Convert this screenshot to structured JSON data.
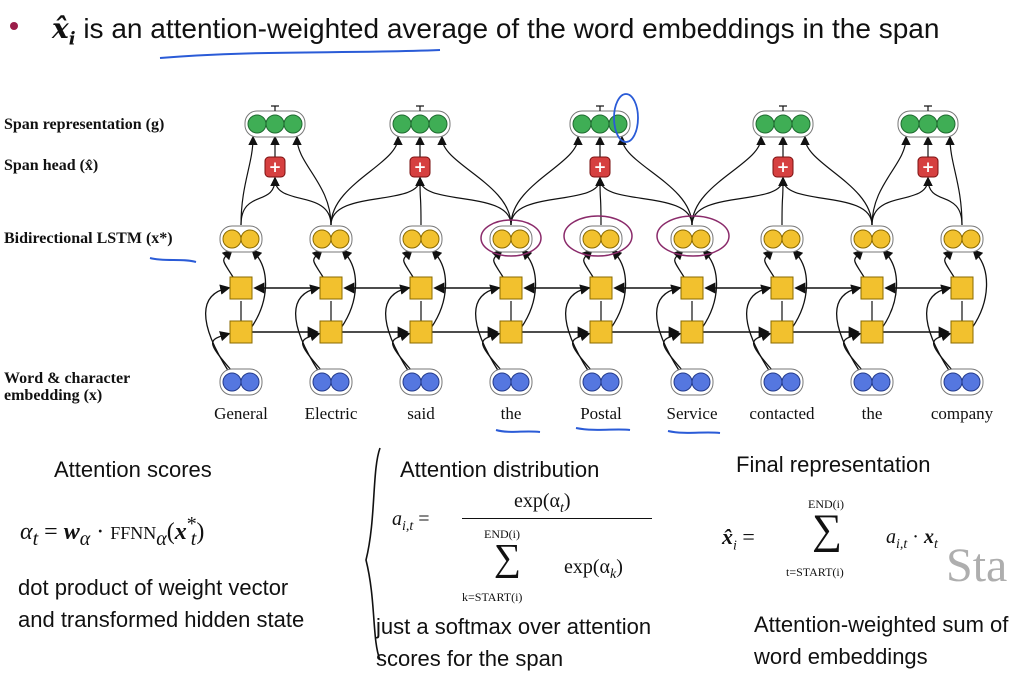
{
  "bullet": {
    "symbol": "x̂",
    "subscript": "i",
    "text": "is an attention-weighted average of the word embeddings in the span"
  },
  "diagram": {
    "labels": {
      "span_representation": "Span representation (g)",
      "span_head": "Span head (x̂)",
      "bilstm": "Bidirectional LSTM (x*)",
      "embedding_line1": "Word & character",
      "embedding_line2": "embedding (x)"
    },
    "plus_symbol": "+",
    "words": [
      "General",
      "Electric",
      "said",
      "the",
      "Postal",
      "Service",
      "contacted",
      "the",
      "company"
    ],
    "colors": {
      "green_node": "#3fae55",
      "yellow_node": "#f2c12e",
      "blue_node": "#5577e0",
      "red_head": "#d64040",
      "lstm_box": "#f2c12e",
      "annotation_ink": "#2a5bd7",
      "annotation_purple": "#8a2a6a"
    }
  },
  "sections": {
    "attention_scores": {
      "title": "Attention scores",
      "formula_lhs": "α",
      "formula_lhs_sub": "t",
      "formula_w": "w",
      "formula_w_sub": "α",
      "formula_ffnn": "FFNN",
      "formula_ffnn_sub": "α",
      "formula_x": "x",
      "formula_x_sub": "t",
      "formula_x_sup": "*",
      "description": "dot product of weight vector and transformed hidden state"
    },
    "attention_distribution": {
      "title": "Attention distribution",
      "lhs": "a",
      "lhs_sub": "i,t",
      "numerator": "exp(α",
      "numerator_sub": "t",
      "sum_top": "END(i)",
      "sum_bottom": "k=START(i)",
      "denominator": "exp(α",
      "denominator_sub": "k",
      "description": "just a softmax over attention scores for the span"
    },
    "final_representation": {
      "title": "Final representation",
      "lhs": "x̂",
      "lhs_sub": "i",
      "sum_top": "END(i)",
      "sum_bottom": "t=START(i)",
      "term": "a",
      "term_sub": "i,t",
      "term2": "x",
      "term2_sub": "t",
      "watermark": "Sta",
      "description": "Attention-weighted sum of word embeddings"
    }
  }
}
